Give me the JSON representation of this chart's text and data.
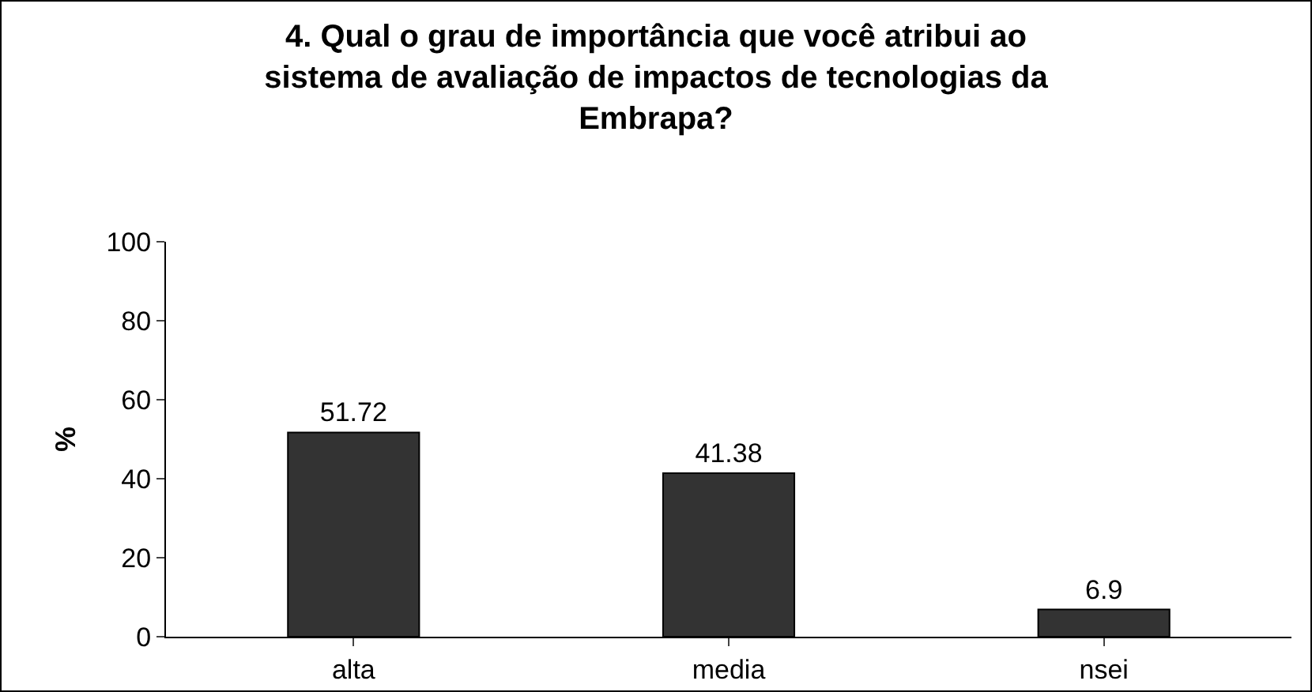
{
  "chart_data": {
    "type": "bar",
    "title": "4. Qual o grau de importância que você atribui ao\nsistema de avaliação de impactos de tecnologias da\nEmbrapa?",
    "ylabel": "%",
    "categories": [
      "alta",
      "media",
      "nsei"
    ],
    "values": [
      51.72,
      41.38,
      6.9
    ],
    "color": "#333333",
    "ylim": [
      0,
      100
    ],
    "yticks": [
      0,
      20,
      40,
      60,
      80,
      100
    ],
    "grid": false,
    "data_labels": true,
    "legend": false
  }
}
